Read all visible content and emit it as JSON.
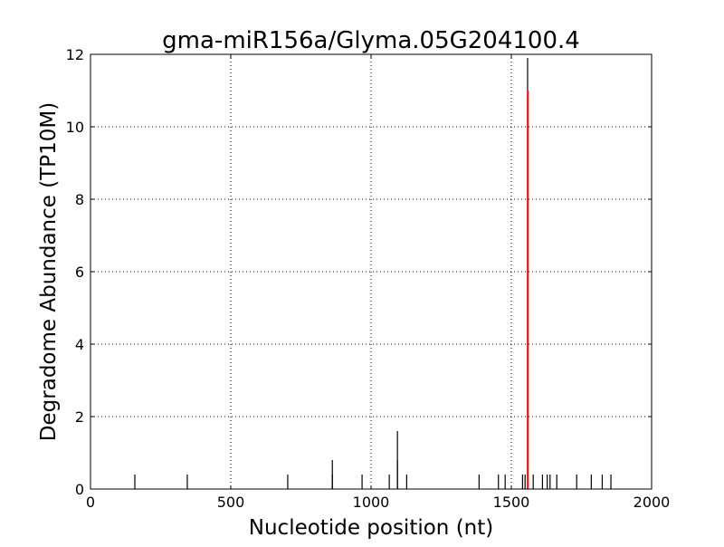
{
  "chart_data": {
    "type": "bar",
    "title": "gma-miR156a/Glyma.05G204100.4",
    "xlabel": "Nucleotide position (nt)",
    "ylabel": "Degradome Abundance (TP10M)",
    "xlim": [
      0,
      2000
    ],
    "ylim": [
      0,
      12
    ],
    "xticks": [
      "0",
      "500",
      "1000",
      "1500",
      "2000"
    ],
    "yticks": [
      "0",
      "2",
      "4",
      "6",
      "8",
      "10",
      "12"
    ],
    "grid": true,
    "colors": {
      "tags": "#000000",
      "target_site": "#ff0000"
    },
    "series": [
      {
        "x": [
          158,
          345,
          703,
          862,
          862,
          968,
          1065,
          1094,
          1094,
          1127,
          1385,
          1454,
          1478,
          1540,
          1549,
          1558,
          1578,
          1611,
          1628,
          1638,
          1662,
          1733,
          1785,
          1824,
          1855
        ],
        "values": [
          0.4,
          0.4,
          0.4,
          0.8,
          0.4,
          0.4,
          0.4,
          1.6,
          0.8,
          0.4,
          0.4,
          0.4,
          0.4,
          0.4,
          0.4,
          11.9,
          0.4,
          0.4,
          0.4,
          0.4,
          0.4,
          0.4,
          0.4,
          0.4,
          0.4
        ],
        "color": "#000000"
      },
      {
        "x": [
          1559
        ],
        "values": [
          11
        ],
        "color": "#ff0000"
      }
    ]
  }
}
